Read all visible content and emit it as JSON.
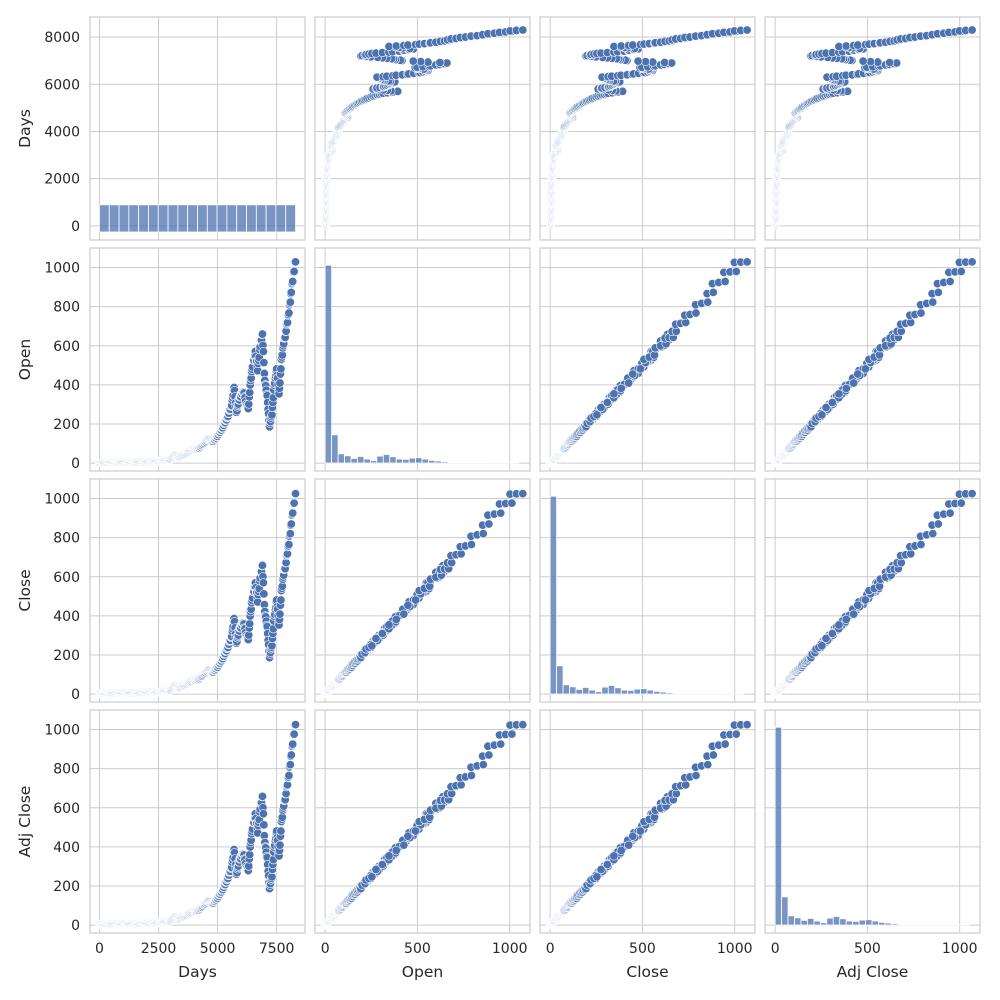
{
  "colors": {
    "point_fill": "#4c72b0",
    "point_edge": "#ffffff",
    "hist_fill": "#4c72b0",
    "hist_edge": "#ffffff",
    "grid": "#cccccc",
    "text": "#262626"
  },
  "chart_data": {
    "type": "pairplot",
    "variables": [
      "Days",
      "Open",
      "Close",
      "Adj Close"
    ],
    "axes": {
      "Days": {
        "range": [
          -400,
          8700
        ],
        "ticks": [
          0,
          2500,
          5000,
          7500
        ],
        "ylim": [
          -600,
          8850
        ],
        "yticks": [
          0,
          2000,
          4000,
          6000,
          8000
        ]
      },
      "Open": {
        "range": [
          -55,
          1110
        ],
        "ticks": [
          0,
          500,
          1000
        ],
        "ylim": [
          -40,
          1100
        ],
        "yticks": [
          0,
          200,
          400,
          600,
          800,
          1000
        ]
      },
      "Close": {
        "range": [
          -55,
          1110
        ],
        "ticks": [
          0,
          500,
          1000
        ],
        "ylim": [
          -40,
          1100
        ],
        "yticks": [
          0,
          200,
          400,
          600,
          800,
          1000
        ]
      },
      "Adj Close": {
        "range": [
          -55,
          1110
        ],
        "ticks": [
          0,
          500,
          1000
        ],
        "ylim": [
          -40,
          1100
        ],
        "yticks": [
          0,
          200,
          400,
          600,
          800,
          1000
        ]
      }
    },
    "histograms": {
      "Days": {
        "bin_edges": [
          0,
          415,
          830,
          1245,
          1660,
          2075,
          2490,
          2905,
          3320,
          3735,
          4150,
          4565,
          4980,
          5395,
          5810,
          6225,
          6640,
          7055,
          7470,
          7885,
          8300
        ],
        "counts": [
          415,
          415,
          415,
          415,
          415,
          415,
          415,
          415,
          415,
          415,
          415,
          415,
          415,
          415,
          415,
          415,
          415,
          415,
          415,
          415
        ],
        "max_count": 3100
      },
      "Price": {
        "bin_edges": [
          0,
          35,
          70,
          105,
          140,
          175,
          210,
          245,
          280,
          315,
          350,
          385,
          420,
          455,
          490,
          525,
          560,
          595,
          630,
          665,
          700,
          735,
          770,
          805,
          840,
          875,
          910,
          945,
          980,
          1015,
          1050
        ],
        "counts": [
          3020,
          430,
          140,
          110,
          70,
          100,
          60,
          35,
          105,
          130,
          95,
          60,
          55,
          75,
          80,
          60,
          40,
          30,
          20,
          10,
          6,
          5,
          4,
          3,
          2,
          2,
          1,
          1,
          1,
          1
        ],
        "max_count": 3100
      }
    },
    "series": {
      "days": [
        0,
        500,
        1000,
        1500,
        2000,
        2500,
        3000,
        3200,
        3400,
        3600,
        3800,
        4000,
        4200,
        4400,
        4600,
        4800,
        5000,
        5200,
        5400,
        5600,
        5700,
        5800,
        5900,
        6000,
        6100,
        6200,
        6300,
        6400,
        6500,
        6600,
        6700,
        6800,
        6900,
        7000,
        7100,
        7200,
        7300,
        7400,
        7500,
        7600,
        7700,
        7800,
        7900,
        8000,
        8100,
        8200,
        8300
      ],
      "price": [
        1,
        2,
        4,
        3,
        6,
        10,
        20,
        40,
        30,
        45,
        60,
        70,
        75,
        100,
        120,
        110,
        140,
        180,
        230,
        300,
        390,
        260,
        320,
        350,
        370,
        300,
        280,
        420,
        520,
        560,
        480,
        600,
        660,
        420,
        340,
        190,
        250,
        400,
        480,
        350,
        520,
        620,
        680,
        760,
        860,
        960,
        1050
      ]
    }
  }
}
